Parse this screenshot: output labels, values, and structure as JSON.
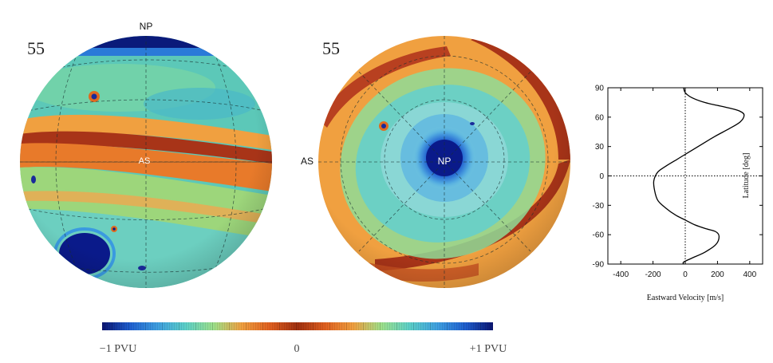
{
  "panel_left": {
    "frame_number": "55",
    "labels": {
      "top": "NP",
      "middle": "AS"
    }
  },
  "panel_right": {
    "frame_number": "55",
    "labels": {
      "center": "NP",
      "side": "AS"
    }
  },
  "colorbar": {
    "min_label": "−1 PVU",
    "mid_label": "0",
    "max_label": "+1 PVU",
    "colors": [
      "#0b1470",
      "#1f5fd0",
      "#3fa0e0",
      "#5cd0c8",
      "#9ee08a",
      "#f0a040",
      "#e06020",
      "#a03010",
      "#e06020",
      "#f0a040",
      "#9ee08a",
      "#5cd0c8",
      "#3fa0e0",
      "#1f5fd0",
      "#0b1470"
    ]
  },
  "chart_data": {
    "type": "line",
    "title": "",
    "xlabel": "Eastward Velocity [m/s]",
    "ylabel": "Latitude [deg]",
    "xlim": [
      -480,
      480
    ],
    "ylim": [
      -90,
      90
    ],
    "xticks": [
      "-400",
      "-200",
      "0",
      "200",
      "400"
    ],
    "xtick_values": [
      -400,
      -200,
      0,
      200,
      400
    ],
    "yticks": [
      "-90",
      "-60",
      "-30",
      "0",
      "30",
      "60",
      "90"
    ],
    "ytick_values": [
      -90,
      -60,
      -30,
      0,
      30,
      60,
      90
    ],
    "series": [
      {
        "x": [
          -10,
          0,
          40,
          120,
          200,
          280,
          340,
          365,
          340,
          270,
          180,
          100,
          40,
          0,
          -60,
          -120,
          -170,
          -195,
          -190,
          -170,
          -120,
          -60,
          0,
          60,
          130,
          190,
          210,
          190,
          120,
          40,
          -10,
          -10
        ],
        "y": [
          90,
          85,
          80,
          75,
          72,
          69,
          66,
          62,
          55,
          48,
          40,
          32,
          26,
          22,
          16,
          10,
          4,
          -5,
          -15,
          -25,
          -33,
          -40,
          -45,
          -50,
          -54,
          -57,
          -62,
          -70,
          -78,
          -84,
          -88,
          -90
        ]
      }
    ],
    "reference_lines": {
      "x": 0,
      "y": 0
    }
  }
}
